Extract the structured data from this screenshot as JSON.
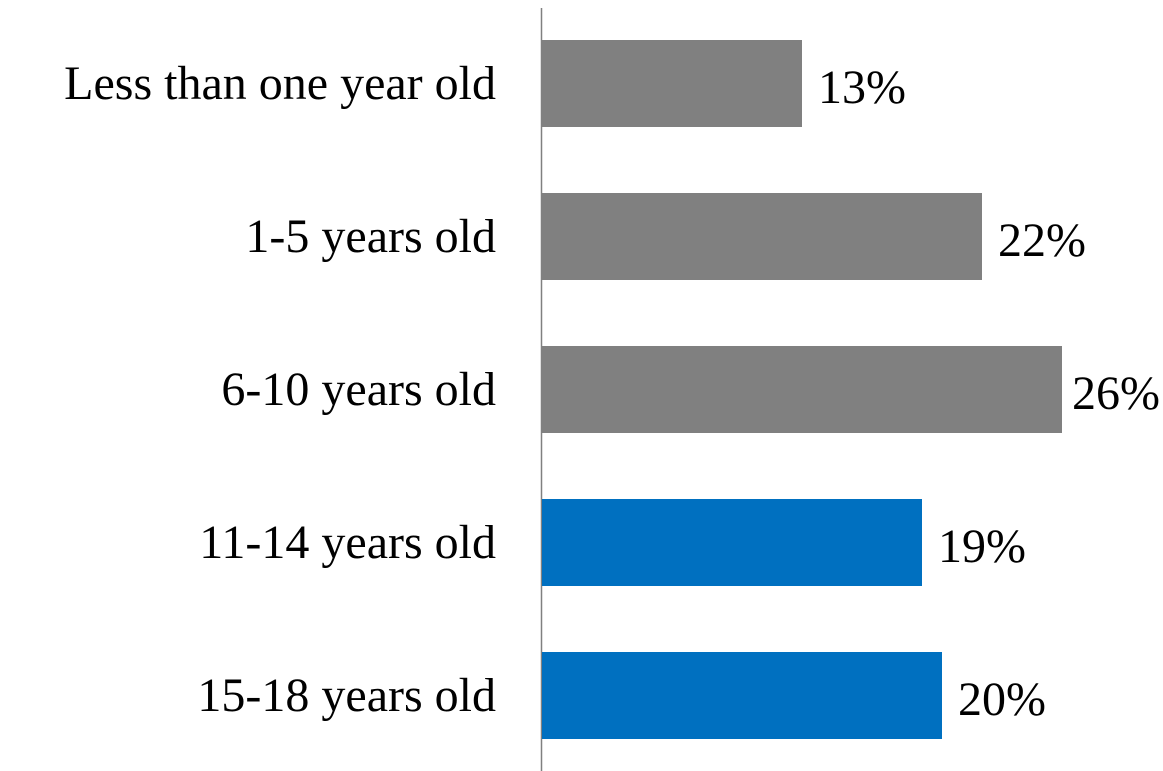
{
  "chart_data": {
    "type": "bar",
    "orientation": "horizontal",
    "categories": [
      "Less than one year old",
      "1-5 years old",
      "6-10 years old",
      "11-14 years old",
      "15-18 years old"
    ],
    "values": [
      13,
      22,
      26,
      19,
      20
    ],
    "value_labels": [
      "13%",
      "22%",
      "26%",
      "19%",
      "20%"
    ],
    "unit": "%",
    "xlim": [
      0,
      26
    ],
    "grid": false,
    "legend": "none",
    "bar_colors": [
      "#808080",
      "#808080",
      "#808080",
      "#0070c0",
      "#0070c0"
    ]
  }
}
